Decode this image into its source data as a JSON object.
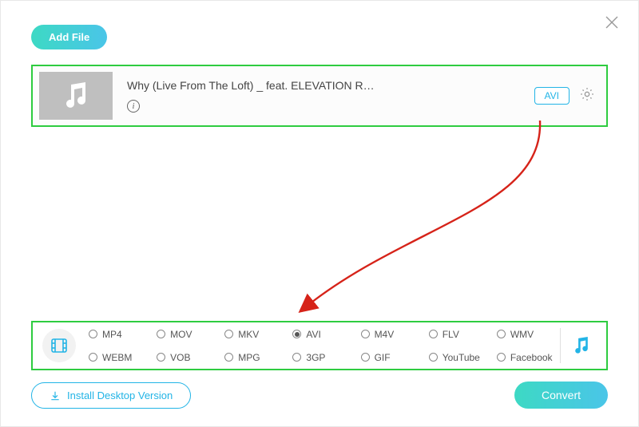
{
  "colors": {
    "accent_gradient_start": "#3dd9c4",
    "accent_gradient_end": "#4ac5e8",
    "highlight_border": "#2ecc40",
    "accent_outline": "#22b4e6",
    "arrow": "#d62319",
    "thumb_bg": "#bfbfbf",
    "text_primary": "#444444",
    "text_muted": "#999999"
  },
  "header": {
    "add_file_label": "Add File"
  },
  "file": {
    "title": "Why (Live From The Loft) _ feat. ELEVATION R…",
    "output_format": "AVI"
  },
  "formats": {
    "selected": "AVI",
    "row1": [
      "MP4",
      "MOV",
      "MKV",
      "AVI",
      "M4V",
      "FLV",
      "WMV"
    ],
    "row2": [
      "WEBM",
      "VOB",
      "MPG",
      "3GP",
      "GIF",
      "YouTube",
      "Facebook"
    ]
  },
  "footer": {
    "install_label": "Install Desktop Version",
    "convert_label": "Convert"
  }
}
